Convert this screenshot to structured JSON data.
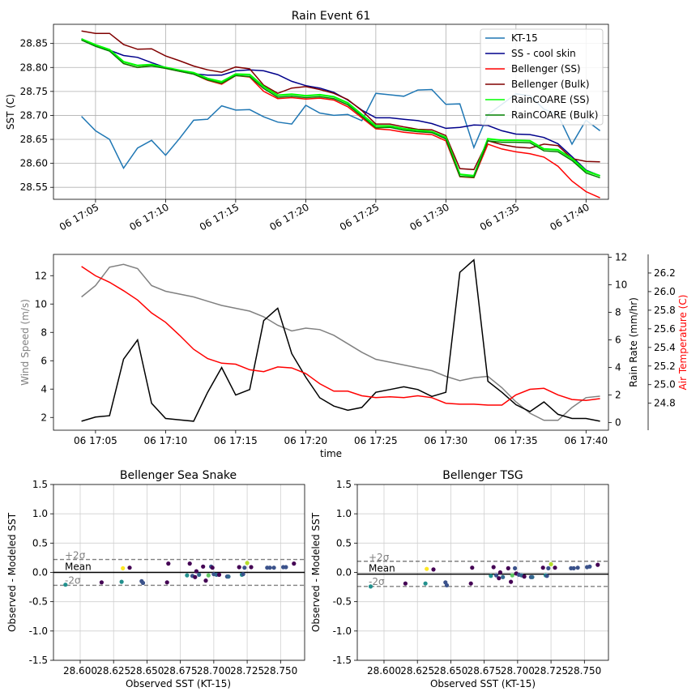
{
  "chart_data": [
    {
      "type": "line",
      "title": "Rain Event 61",
      "ylabel": "SST (C)",
      "xlabel": "",
      "ylim": [
        28.525,
        28.89
      ],
      "xlim": [
        2.0,
        41.6
      ],
      "x_unit": "minutes after 06 17:00",
      "grid": true,
      "legend_position": "top-right",
      "x_ticks": [
        {
          "x": 5,
          "label": "06 17:05"
        },
        {
          "x": 10,
          "label": "06 17:10"
        },
        {
          "x": 15,
          "label": "06 17:15"
        },
        {
          "x": 20,
          "label": "06 17:20"
        },
        {
          "x": 25,
          "label": "06 17:25"
        },
        {
          "x": 30,
          "label": "06 17:30"
        },
        {
          "x": 35,
          "label": "06 17:35"
        },
        {
          "x": 40,
          "label": "06 17:40"
        }
      ],
      "y_ticks": [
        "28.55",
        "28.60",
        "28.65",
        "28.70",
        "28.75",
        "28.80",
        "28.85"
      ],
      "x": [
        4,
        5,
        6,
        7,
        8,
        9,
        10,
        11,
        12,
        13,
        14,
        15,
        16,
        17,
        18,
        19,
        20,
        21,
        22,
        23,
        24,
        25,
        26,
        27,
        28,
        29,
        30,
        31,
        32,
        33,
        34,
        35,
        36,
        37,
        38,
        39,
        40,
        41
      ],
      "series": [
        {
          "name": "KT-15",
          "color": "#1f77b4",
          "values": [
            28.698,
            28.668,
            28.65,
            28.59,
            28.632,
            28.648,
            28.617,
            28.652,
            28.69,
            28.692,
            28.72,
            28.711,
            28.712,
            28.697,
            28.686,
            28.682,
            28.721,
            28.705,
            28.7,
            28.702,
            28.689,
            28.746,
            28.743,
            28.74,
            28.753,
            28.754,
            28.723,
            28.724,
            28.633,
            28.702,
            28.723,
            28.745,
            28.741,
            28.713,
            28.701,
            28.64,
            28.69,
            28.668
          ]
        },
        {
          "name": "SS - cool skin",
          "color": "#00008b",
          "values": [
            28.86,
            28.845,
            28.836,
            28.825,
            28.821,
            28.81,
            28.8,
            28.793,
            28.787,
            28.784,
            28.784,
            28.793,
            28.795,
            28.793,
            28.785,
            28.771,
            28.762,
            28.757,
            28.748,
            28.732,
            28.711,
            28.695,
            28.695,
            28.692,
            28.689,
            28.683,
            28.673,
            28.675,
            28.68,
            28.679,
            28.668,
            28.661,
            28.66,
            28.654,
            28.641,
            28.614,
            28.586,
            28.574
          ]
        },
        {
          "name": "Bellenger (SS)",
          "color": "#ff0000",
          "values": [
            28.858,
            28.845,
            28.836,
            28.808,
            28.8,
            28.804,
            28.798,
            28.792,
            28.786,
            28.773,
            28.765,
            28.783,
            28.78,
            28.75,
            28.735,
            28.737,
            28.734,
            28.736,
            28.732,
            28.718,
            28.695,
            28.672,
            28.67,
            28.665,
            28.662,
            28.66,
            28.647,
            28.572,
            28.57,
            28.64,
            28.63,
            28.624,
            28.62,
            28.613,
            28.594,
            28.563,
            28.541,
            28.528
          ]
        },
        {
          "name": "Bellenger (Bulk)",
          "color": "#800000",
          "values": [
            28.876,
            28.871,
            28.871,
            28.848,
            28.838,
            28.839,
            28.824,
            28.814,
            28.803,
            28.795,
            28.79,
            28.801,
            28.797,
            28.763,
            28.746,
            28.757,
            28.76,
            28.754,
            28.746,
            28.733,
            28.71,
            28.682,
            28.682,
            28.676,
            28.671,
            28.67,
            28.658,
            28.589,
            28.587,
            28.647,
            28.639,
            28.634,
            28.632,
            28.64,
            28.637,
            28.61,
            28.604,
            28.603
          ]
        },
        {
          "name": "RainCOARE (SS)",
          "color": "#00ff00",
          "values": [
            28.859,
            28.847,
            28.837,
            28.812,
            28.804,
            28.806,
            28.8,
            28.794,
            28.789,
            28.777,
            28.77,
            28.786,
            28.785,
            28.76,
            28.742,
            28.744,
            28.741,
            28.743,
            28.739,
            28.726,
            28.702,
            28.678,
            28.678,
            28.672,
            28.669,
            28.666,
            28.654,
            28.577,
            28.574,
            28.651,
            28.648,
            28.648,
            28.647,
            28.63,
            28.628,
            28.61,
            28.584,
            28.574
          ]
        },
        {
          "name": "RainCOARE (Bulk)",
          "color": "#008000",
          "values": [
            28.857,
            28.844,
            28.834,
            28.808,
            28.8,
            28.803,
            28.798,
            28.792,
            28.786,
            28.774,
            28.767,
            28.783,
            28.781,
            28.756,
            28.738,
            28.74,
            28.737,
            28.739,
            28.735,
            28.722,
            28.698,
            28.674,
            28.675,
            28.669,
            28.666,
            28.664,
            28.651,
            28.573,
            28.571,
            28.647,
            28.644,
            28.644,
            28.643,
            28.626,
            28.624,
            28.606,
            28.58,
            28.57
          ]
        }
      ]
    },
    {
      "type": "line",
      "title": "",
      "xlabel": "time",
      "xlim": [
        2.0,
        41.6
      ],
      "x_unit": "minutes after 06 17:00",
      "grid": false,
      "x_ticks": [
        {
          "x": 5,
          "label": "06 17:05"
        },
        {
          "x": 10,
          "label": "06 17:10"
        },
        {
          "x": 15,
          "label": "06 17:15"
        },
        {
          "x": 20,
          "label": "06 17:20"
        },
        {
          "x": 25,
          "label": "06 17:25"
        },
        {
          "x": 30,
          "label": "06 17:30"
        },
        {
          "x": 35,
          "label": "06 17:35"
        },
        {
          "x": 40,
          "label": "06 17:40"
        }
      ],
      "axes": [
        {
          "side": "left",
          "label": "Wind Speed (m/s)",
          "color": "#808080",
          "ylim": [
            1.1,
            13.5
          ],
          "ticks": [
            "2",
            "4",
            "6",
            "8",
            "10",
            "12"
          ]
        },
        {
          "side": "right",
          "label": "Rain Rate (mm/hr)",
          "color": "#000000",
          "ylim": [
            -0.55,
            12.2
          ],
          "ticks": [
            "0",
            "2",
            "4",
            "6",
            "8",
            "10",
            "12"
          ]
        },
        {
          "side": "right-offset",
          "label": "Air Temperature (C)",
          "color": "#ff0000",
          "ylim": [
            24.51,
            26.4
          ],
          "ticks": [
            "24.8",
            "25.0",
            "25.2",
            "25.4",
            "25.6",
            "25.8",
            "26.0",
            "26.2"
          ]
        }
      ],
      "x": [
        4,
        5,
        6,
        7,
        8,
        9,
        10,
        11,
        12,
        13,
        14,
        15,
        16,
        17,
        18,
        19,
        20,
        21,
        22,
        23,
        24,
        25,
        26,
        27,
        28,
        29,
        30,
        31,
        32,
        33,
        34,
        35,
        36,
        37,
        38,
        39,
        40,
        41
      ],
      "series": [
        {
          "axis": 0,
          "color": "#808080",
          "values": [
            10.5,
            11.3,
            12.6,
            12.8,
            12.5,
            11.3,
            10.9,
            10.7,
            10.5,
            10.2,
            9.9,
            9.7,
            9.5,
            9.1,
            8.5,
            8.1,
            8.3,
            8.2,
            7.8,
            7.2,
            6.6,
            6.1,
            5.9,
            5.7,
            5.5,
            5.3,
            4.9,
            4.6,
            4.8,
            4.9,
            4.1,
            3.1,
            2.3,
            1.8,
            1.8,
            2.7,
            3.4,
            3.5
          ]
        },
        {
          "axis": 1,
          "color": "#000000",
          "values": [
            0.1,
            0.4,
            0.5,
            4.6,
            6.0,
            1.4,
            0.3,
            0.2,
            0.1,
            2.2,
            4.0,
            2.0,
            2.4,
            7.4,
            8.3,
            5.0,
            3.3,
            1.8,
            1.2,
            0.9,
            1.1,
            2.2,
            2.4,
            2.6,
            2.4,
            1.9,
            2.2,
            10.9,
            11.8,
            3.0,
            2.2,
            1.3,
            0.8,
            1.5,
            0.6,
            0.3,
            0.3,
            0.1
          ]
        },
        {
          "axis": 2,
          "color": "#ff0000",
          "values": [
            26.27,
            26.17,
            26.1,
            26.01,
            25.91,
            25.77,
            25.67,
            25.53,
            25.38,
            25.28,
            25.23,
            25.22,
            25.16,
            25.14,
            25.19,
            25.18,
            25.12,
            25.01,
            24.93,
            24.93,
            24.88,
            24.86,
            24.87,
            24.86,
            24.88,
            24.86,
            24.8,
            24.79,
            24.79,
            24.78,
            24.78,
            24.89,
            24.95,
            24.96,
            24.89,
            24.84,
            24.83,
            24.85
          ]
        }
      ]
    },
    {
      "type": "scatter",
      "title": "Bellenger Sea Snake",
      "xlabel": "Observed SST (KT-15)",
      "ylabel": "Observed - Modeled SST",
      "xlim": [
        28.58,
        28.768
      ],
      "ylim": [
        -1.5,
        1.5
      ],
      "grid": true,
      "x_ticks": [
        "28.600",
        "28.625",
        "28.650",
        "28.675",
        "28.700",
        "28.725",
        "28.750"
      ],
      "y_ticks": [
        "-1.5",
        "-1.0",
        "-0.5",
        "0.0",
        "0.5",
        "1.0",
        "1.5"
      ],
      "mean": 0.0,
      "upper": 0.22,
      "lower": -0.22,
      "annotations": [
        "+2σ",
        "Mean",
        "-2σ"
      ],
      "points": [
        {
          "x": 28.589,
          "y": -0.21,
          "color": "#21908d"
        },
        {
          "x": 28.616,
          "y": -0.17,
          "color": "#440154"
        },
        {
          "x": 28.631,
          "y": -0.16,
          "color": "#21908d"
        },
        {
          "x": 28.632,
          "y": 0.07,
          "color": "#fde725"
        },
        {
          "x": 28.637,
          "y": 0.08,
          "color": "#440154"
        },
        {
          "x": 28.646,
          "y": -0.15,
          "color": "#3b528b"
        },
        {
          "x": 28.647,
          "y": -0.18,
          "color": "#3b528b"
        },
        {
          "x": 28.665,
          "y": -0.17,
          "color": "#440154"
        },
        {
          "x": 28.666,
          "y": 0.15,
          "color": "#440154"
        },
        {
          "x": 28.68,
          "y": -0.05,
          "color": "#21908d"
        },
        {
          "x": 28.682,
          "y": 0.15,
          "color": "#440154"
        },
        {
          "x": 28.684,
          "y": -0.06,
          "color": "#3b528b"
        },
        {
          "x": 28.686,
          "y": -0.08,
          "color": "#440154"
        },
        {
          "x": 28.687,
          "y": 0.02,
          "color": "#440154"
        },
        {
          "x": 28.689,
          "y": -0.04,
          "color": "#31688e"
        },
        {
          "x": 28.692,
          "y": 0.1,
          "color": "#440154"
        },
        {
          "x": 28.694,
          "y": -0.14,
          "color": "#440154"
        },
        {
          "x": 28.696,
          "y": -0.05,
          "color": "#5ec962"
        },
        {
          "x": 28.698,
          "y": 0.1,
          "color": "#3b528b"
        },
        {
          "x": 28.699,
          "y": 0.08,
          "color": "#440154"
        },
        {
          "x": 28.7,
          "y": -0.03,
          "color": "#3b528b"
        },
        {
          "x": 28.702,
          "y": -0.04,
          "color": "#31688e"
        },
        {
          "x": 28.704,
          "y": -0.04,
          "color": "#440154"
        },
        {
          "x": 28.71,
          "y": -0.07,
          "color": "#3b528b"
        },
        {
          "x": 28.711,
          "y": -0.07,
          "color": "#31688e"
        },
        {
          "x": 28.719,
          "y": 0.09,
          "color": "#440154"
        },
        {
          "x": 28.721,
          "y": -0.04,
          "color": "#21908d"
        },
        {
          "x": 28.722,
          "y": -0.03,
          "color": "#3b528b"
        },
        {
          "x": 28.723,
          "y": 0.08,
          "color": "#3b528b"
        },
        {
          "x": 28.725,
          "y": 0.16,
          "color": "#b5de2b"
        },
        {
          "x": 28.728,
          "y": 0.09,
          "color": "#440154"
        },
        {
          "x": 28.74,
          "y": 0.08,
          "color": "#3b528b"
        },
        {
          "x": 28.742,
          "y": 0.08,
          "color": "#3b528b"
        },
        {
          "x": 28.745,
          "y": 0.08,
          "color": "#3b528b"
        },
        {
          "x": 28.752,
          "y": 0.09,
          "color": "#3b528b"
        },
        {
          "x": 28.754,
          "y": 0.09,
          "color": "#3b528b"
        },
        {
          "x": 28.76,
          "y": 0.15,
          "color": "#440154"
        }
      ]
    },
    {
      "type": "scatter",
      "title": "Bellenger TSG",
      "xlabel": "Observed SST (KT-15)",
      "ylabel": "Observed - Modeled SST",
      "xlim": [
        28.58,
        28.768
      ],
      "ylim": [
        -1.5,
        1.5
      ],
      "grid": true,
      "x_ticks": [
        "28.600",
        "28.625",
        "28.650",
        "28.675",
        "28.700",
        "28.725",
        "28.750"
      ],
      "y_ticks": [
        "-1.5",
        "-1.0",
        "-0.5",
        "0.0",
        "0.5",
        "1.0",
        "1.5"
      ],
      "mean": -0.03,
      "upper": 0.19,
      "lower": -0.24,
      "annotations": [
        "+2σ",
        "Mean",
        "-2σ"
      ],
      "points": [
        {
          "x": 28.59,
          "y": -0.24,
          "color": "#21908d"
        },
        {
          "x": 28.616,
          "y": -0.19,
          "color": "#440154"
        },
        {
          "x": 28.631,
          "y": -0.19,
          "color": "#21908d"
        },
        {
          "x": 28.632,
          "y": 0.06,
          "color": "#fde725"
        },
        {
          "x": 28.637,
          "y": 0.05,
          "color": "#440154"
        },
        {
          "x": 28.646,
          "y": -0.17,
          "color": "#3b528b"
        },
        {
          "x": 28.647,
          "y": -0.22,
          "color": "#3b528b"
        },
        {
          "x": 28.665,
          "y": -0.19,
          "color": "#440154"
        },
        {
          "x": 28.666,
          "y": 0.08,
          "color": "#440154"
        },
        {
          "x": 28.68,
          "y": -0.06,
          "color": "#21908d"
        },
        {
          "x": 28.682,
          "y": 0.09,
          "color": "#440154"
        },
        {
          "x": 28.684,
          "y": -0.05,
          "color": "#3b528b"
        },
        {
          "x": 28.686,
          "y": -0.1,
          "color": "#440154"
        },
        {
          "x": 28.687,
          "y": 0.0,
          "color": "#440154"
        },
        {
          "x": 28.689,
          "y": -0.08,
          "color": "#31688e"
        },
        {
          "x": 28.693,
          "y": 0.07,
          "color": "#440154"
        },
        {
          "x": 28.695,
          "y": -0.16,
          "color": "#440154"
        },
        {
          "x": 28.696,
          "y": -0.05,
          "color": "#5ec962"
        },
        {
          "x": 28.698,
          "y": 0.07,
          "color": "#3b528b"
        },
        {
          "x": 28.699,
          "y": -0.02,
          "color": "#440154"
        },
        {
          "x": 28.701,
          "y": -0.04,
          "color": "#3b528b"
        },
        {
          "x": 28.703,
          "y": -0.05,
          "color": "#31688e"
        },
        {
          "x": 28.705,
          "y": -0.07,
          "color": "#440154"
        },
        {
          "x": 28.71,
          "y": -0.08,
          "color": "#3b528b"
        },
        {
          "x": 28.711,
          "y": -0.08,
          "color": "#31688e"
        },
        {
          "x": 28.719,
          "y": 0.08,
          "color": "#440154"
        },
        {
          "x": 28.721,
          "y": -0.05,
          "color": "#21908d"
        },
        {
          "x": 28.722,
          "y": -0.06,
          "color": "#3b528b"
        },
        {
          "x": 28.723,
          "y": 0.07,
          "color": "#3b528b"
        },
        {
          "x": 28.725,
          "y": 0.14,
          "color": "#b5de2b"
        },
        {
          "x": 28.728,
          "y": 0.08,
          "color": "#440154"
        },
        {
          "x": 28.74,
          "y": 0.07,
          "color": "#3b528b"
        },
        {
          "x": 28.742,
          "y": 0.07,
          "color": "#3b528b"
        },
        {
          "x": 28.745,
          "y": 0.08,
          "color": "#3b528b"
        },
        {
          "x": 28.752,
          "y": 0.09,
          "color": "#3b528b"
        },
        {
          "x": 28.754,
          "y": 0.1,
          "color": "#3b528b"
        },
        {
          "x": 28.76,
          "y": 0.13,
          "color": "#440154"
        }
      ]
    }
  ]
}
